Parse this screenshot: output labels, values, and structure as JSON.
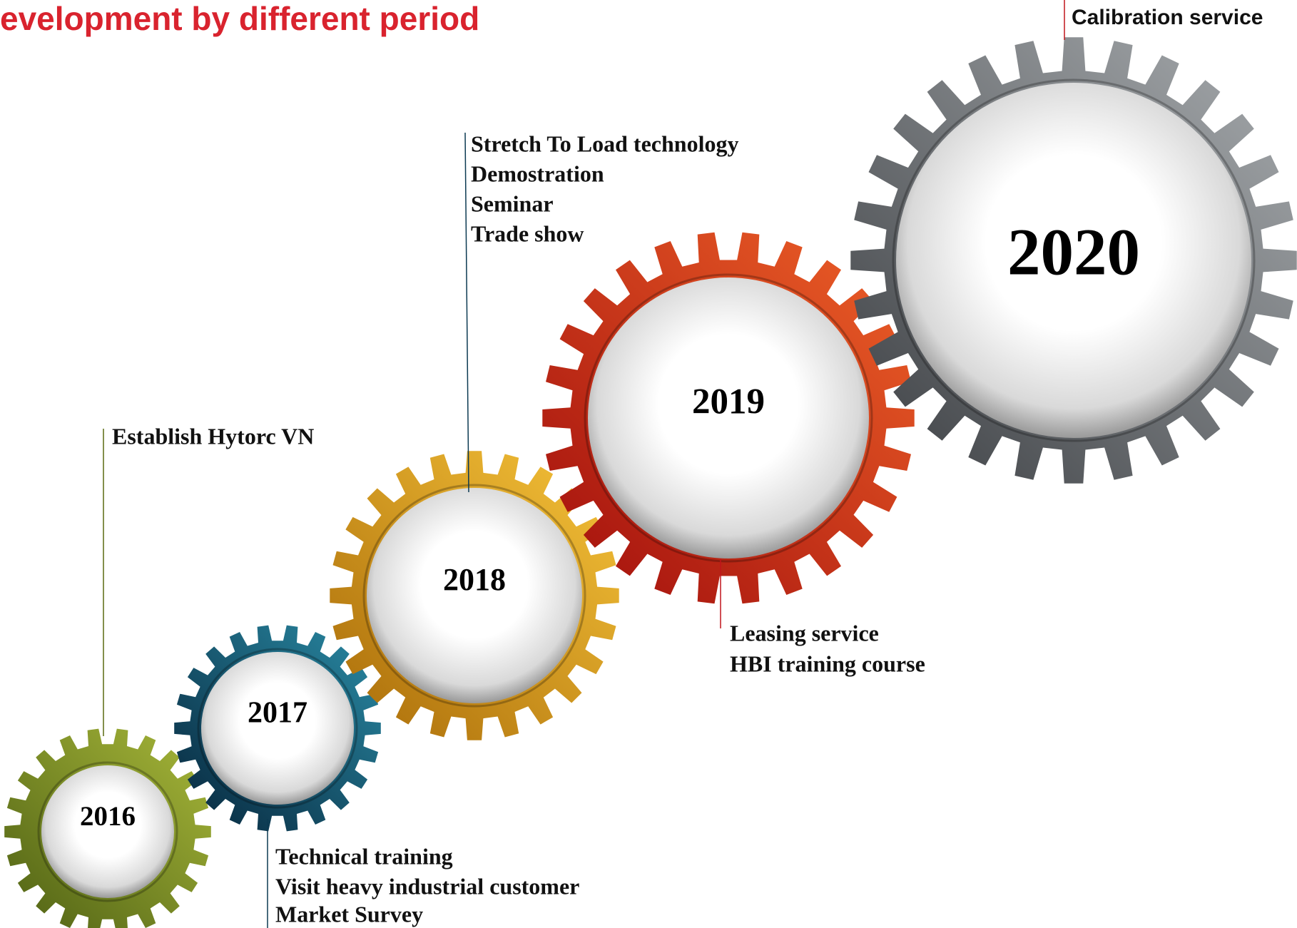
{
  "title": "evelopment by different period",
  "gears": [
    {
      "year": "2016",
      "items": [
        "Establish Hytorc VN"
      ]
    },
    {
      "year": "2017",
      "items": [
        "Technical training",
        "Visit heavy industrial customer",
        "Market Survey"
      ]
    },
    {
      "year": "2018",
      "items": [
        "Stretch To Load technology",
        "Demostration",
        "Seminar",
        "Trade show"
      ]
    },
    {
      "year": "2019",
      "items": [
        "Leasing service",
        "HBI training course"
      ]
    },
    {
      "year": "2020",
      "items": [
        "Calibration service"
      ]
    }
  ]
}
